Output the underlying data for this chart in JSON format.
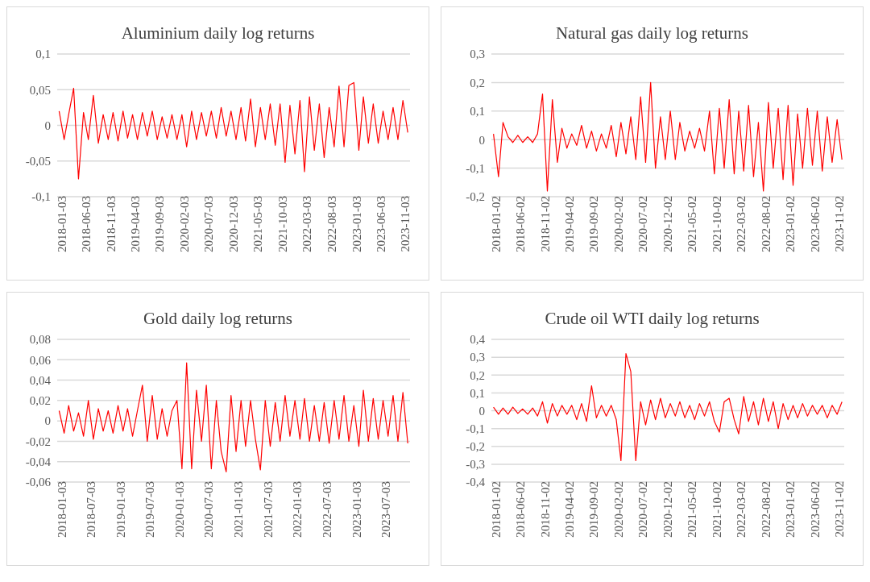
{
  "chart_data": [
    {
      "type": "line",
      "title": "Aluminium daily log returns",
      "grid": "y",
      "legend": false,
      "marker": "none",
      "line_style": "solid",
      "x": [
        "2018-01-15",
        "2018-02-15",
        "2018-03-15",
        "2018-04-15",
        "2018-05-15",
        "2018-06-15",
        "2018-07-15",
        "2018-08-15",
        "2018-09-15",
        "2018-10-15",
        "2018-11-15",
        "2018-12-15",
        "2019-01-15",
        "2019-02-15",
        "2019-03-15",
        "2019-04-15",
        "2019-05-15",
        "2019-06-15",
        "2019-07-15",
        "2019-08-15",
        "2019-09-15",
        "2019-10-15",
        "2019-11-15",
        "2019-12-15",
        "2020-01-15",
        "2020-02-15",
        "2020-03-15",
        "2020-04-15",
        "2020-05-15",
        "2020-06-15",
        "2020-07-15",
        "2020-08-15",
        "2020-09-15",
        "2020-10-15",
        "2020-11-15",
        "2020-12-15",
        "2021-01-15",
        "2021-02-15",
        "2021-03-15",
        "2021-04-15",
        "2021-05-15",
        "2021-06-15",
        "2021-07-15",
        "2021-08-15",
        "2021-09-15",
        "2021-10-15",
        "2021-11-15",
        "2021-12-15",
        "2022-01-15",
        "2022-02-15",
        "2022-03-15",
        "2022-04-15",
        "2022-05-15",
        "2022-06-15",
        "2022-07-15",
        "2022-08-15",
        "2022-09-15",
        "2022-10-15",
        "2022-11-15",
        "2022-12-15",
        "2023-01-15",
        "2023-02-15",
        "2023-03-15",
        "2023-04-15",
        "2023-05-15",
        "2023-06-15",
        "2023-07-15",
        "2023-08-15",
        "2023-09-15",
        "2023-10-15",
        "2023-11-15",
        "2023-12-15"
      ],
      "series": [
        {
          "color": "#ff0000",
          "values": [
            0.02,
            -0.02,
            0.015,
            0.052,
            -0.075,
            0.018,
            -0.02,
            0.042,
            -0.025,
            0.015,
            -0.02,
            0.018,
            -0.022,
            0.02,
            -0.018,
            0.015,
            -0.02,
            0.018,
            -0.015,
            0.02,
            -0.02,
            0.012,
            -0.018,
            0.015,
            -0.02,
            0.015,
            -0.03,
            0.02,
            -0.02,
            0.018,
            -0.015,
            0.02,
            -0.018,
            0.025,
            -0.015,
            0.02,
            -0.02,
            0.025,
            -0.022,
            0.037,
            -0.03,
            0.025,
            -0.02,
            0.03,
            -0.028,
            0.03,
            -0.052,
            0.028,
            -0.04,
            0.035,
            -0.065,
            0.04,
            -0.035,
            0.03,
            -0.045,
            0.025,
            -0.03,
            0.055,
            -0.03,
            0.056,
            0.06,
            -0.035,
            0.04,
            -0.025,
            0.03,
            -0.025,
            0.02,
            -0.02,
            0.025,
            -0.02,
            0.035,
            -0.01
          ]
        }
      ],
      "xlim": [
        "2018-01-03",
        "2023-12-29"
      ],
      "xticks": [
        "2018-01-03",
        "2018-06-03",
        "2018-11-03",
        "2019-04-03",
        "2019-09-03",
        "2020-02-03",
        "2020-07-03",
        "2020-12-03",
        "2021-05-03",
        "2021-10-03",
        "2022-03-03",
        "2022-08-03",
        "2023-01-03",
        "2023-06-03",
        "2023-11-03"
      ],
      "ylim": [
        -0.1,
        0.1
      ],
      "yticks": [
        {
          "value": -0.1,
          "label": "-0,1"
        },
        {
          "value": -0.05,
          "label": "-0,05"
        },
        {
          "value": 0,
          "label": "0"
        },
        {
          "value": 0.05,
          "label": "0,05"
        },
        {
          "value": 0.1,
          "label": "0,1"
        }
      ]
    },
    {
      "type": "line",
      "title": "Natural gas daily log returns",
      "grid": "y",
      "legend": false,
      "marker": "none",
      "line_style": "solid",
      "x": [
        "2018-01-15",
        "2018-02-15",
        "2018-03-15",
        "2018-04-15",
        "2018-05-15",
        "2018-06-15",
        "2018-07-15",
        "2018-08-15",
        "2018-09-15",
        "2018-10-15",
        "2018-11-15",
        "2018-12-15",
        "2019-01-15",
        "2019-02-15",
        "2019-03-15",
        "2019-04-15",
        "2019-05-15",
        "2019-06-15",
        "2019-07-15",
        "2019-08-15",
        "2019-09-15",
        "2019-10-15",
        "2019-11-15",
        "2019-12-15",
        "2020-01-15",
        "2020-02-15",
        "2020-03-15",
        "2020-04-15",
        "2020-05-15",
        "2020-06-15",
        "2020-07-15",
        "2020-08-15",
        "2020-09-15",
        "2020-10-15",
        "2020-11-15",
        "2020-12-15",
        "2021-01-15",
        "2021-02-15",
        "2021-03-15",
        "2021-04-15",
        "2021-05-15",
        "2021-06-15",
        "2021-07-15",
        "2021-08-15",
        "2021-09-15",
        "2021-10-15",
        "2021-11-15",
        "2021-12-15",
        "2022-01-15",
        "2022-02-15",
        "2022-03-15",
        "2022-04-15",
        "2022-05-15",
        "2022-06-15",
        "2022-07-15",
        "2022-08-15",
        "2022-09-15",
        "2022-10-15",
        "2022-11-15",
        "2022-12-15",
        "2023-01-15",
        "2023-02-15",
        "2023-03-15",
        "2023-04-15",
        "2023-05-15",
        "2023-06-15",
        "2023-07-15",
        "2023-08-15",
        "2023-09-15",
        "2023-10-15",
        "2023-11-15",
        "2023-12-15"
      ],
      "series": [
        {
          "color": "#ff0000",
          "values": [
            0.02,
            -0.13,
            0.06,
            0.01,
            -0.01,
            0.015,
            -0.01,
            0.01,
            -0.01,
            0.02,
            0.16,
            -0.18,
            0.14,
            -0.08,
            0.04,
            -0.03,
            0.02,
            -0.02,
            0.05,
            -0.03,
            0.03,
            -0.04,
            0.02,
            -0.03,
            0.05,
            -0.06,
            0.06,
            -0.05,
            0.08,
            -0.07,
            0.15,
            -0.08,
            0.2,
            -0.1,
            0.08,
            -0.07,
            0.1,
            -0.07,
            0.06,
            -0.04,
            0.03,
            -0.03,
            0.04,
            -0.04,
            0.1,
            -0.12,
            0.11,
            -0.1,
            0.14,
            -0.12,
            0.1,
            -0.11,
            0.12,
            -0.13,
            0.06,
            -0.18,
            0.13,
            -0.1,
            0.11,
            -0.14,
            0.12,
            -0.16,
            0.09,
            -0.1,
            0.11,
            -0.09,
            0.1,
            -0.11,
            0.08,
            -0.08,
            0.07,
            -0.07
          ]
        }
      ],
      "xlim": [
        "2018-01-02",
        "2023-12-29"
      ],
      "xticks": [
        "2018-01-02",
        "2018-06-02",
        "2018-11-02",
        "2019-04-02",
        "2019-09-02",
        "2020-02-02",
        "2020-07-02",
        "2020-12-02",
        "2021-05-02",
        "2021-10-02",
        "2022-03-02",
        "2022-08-02",
        "2023-01-02",
        "2023-06-02",
        "2023-11-02"
      ],
      "ylim": [
        -0.2,
        0.3
      ],
      "yticks": [
        {
          "value": -0.2,
          "label": "-0,2"
        },
        {
          "value": -0.1,
          "label": "-0,1"
        },
        {
          "value": 0,
          "label": "0"
        },
        {
          "value": 0.1,
          "label": "0,1"
        },
        {
          "value": 0.2,
          "label": "0,2"
        },
        {
          "value": 0.3,
          "label": "0,3"
        }
      ]
    },
    {
      "type": "line",
      "title": "Gold daily log returns",
      "grid": "y",
      "legend": false,
      "marker": "none",
      "line_style": "solid",
      "x": [
        "2018-01-15",
        "2018-02-15",
        "2018-03-15",
        "2018-04-15",
        "2018-05-15",
        "2018-06-15",
        "2018-07-15",
        "2018-08-15",
        "2018-09-15",
        "2018-10-15",
        "2018-11-15",
        "2018-12-15",
        "2019-01-15",
        "2019-02-15",
        "2019-03-15",
        "2019-04-15",
        "2019-05-15",
        "2019-06-15",
        "2019-07-15",
        "2019-08-15",
        "2019-09-15",
        "2019-10-15",
        "2019-11-15",
        "2019-12-15",
        "2020-01-15",
        "2020-02-15",
        "2020-03-15",
        "2020-04-15",
        "2020-05-15",
        "2020-06-15",
        "2020-07-15",
        "2020-08-15",
        "2020-09-15",
        "2020-10-15",
        "2020-11-15",
        "2020-12-15",
        "2021-01-15",
        "2021-02-15",
        "2021-03-15",
        "2021-04-15",
        "2021-05-15",
        "2021-06-15",
        "2021-07-15",
        "2021-08-15",
        "2021-09-15",
        "2021-10-15",
        "2021-11-15",
        "2021-12-15",
        "2022-01-15",
        "2022-02-15",
        "2022-03-15",
        "2022-04-15",
        "2022-05-15",
        "2022-06-15",
        "2022-07-15",
        "2022-08-15",
        "2022-09-15",
        "2022-10-15",
        "2022-11-15",
        "2022-12-15",
        "2023-01-15",
        "2023-02-15",
        "2023-03-15",
        "2023-04-15",
        "2023-05-15",
        "2023-06-15",
        "2023-07-15",
        "2023-08-15",
        "2023-09-15",
        "2023-10-15",
        "2023-11-15",
        "2023-12-15"
      ],
      "series": [
        {
          "color": "#ff0000",
          "values": [
            0.01,
            -0.012,
            0.015,
            -0.01,
            0.008,
            -0.015,
            0.02,
            -0.018,
            0.012,
            -0.01,
            0.01,
            -0.012,
            0.015,
            -0.01,
            0.012,
            -0.015,
            0.01,
            0.035,
            -0.02,
            0.025,
            -0.018,
            0.012,
            -0.015,
            0.01,
            0.02,
            -0.047,
            0.057,
            -0.047,
            0.03,
            -0.02,
            0.035,
            -0.047,
            0.02,
            -0.03,
            -0.05,
            0.025,
            -0.03,
            0.02,
            -0.025,
            0.02,
            -0.018,
            -0.048,
            0.02,
            -0.025,
            0.018,
            -0.02,
            0.025,
            -0.015,
            0.02,
            -0.018,
            0.022,
            -0.02,
            0.015,
            -0.02,
            0.018,
            -0.022,
            0.02,
            -0.018,
            0.025,
            -0.02,
            0.015,
            -0.025,
            0.03,
            -0.02,
            0.022,
            -0.018,
            0.02,
            -0.015,
            0.025,
            -0.02,
            0.028,
            -0.022
          ]
        }
      ],
      "xlim": [
        "2018-01-03",
        "2023-12-29"
      ],
      "xticks": [
        "2018-01-03",
        "2018-07-03",
        "2019-01-03",
        "2019-07-03",
        "2020-01-03",
        "2020-07-03",
        "2021-01-03",
        "2021-07-03",
        "2022-01-03",
        "2022-07-03",
        "2023-01-03",
        "2023-07-03"
      ],
      "ylim": [
        -0.06,
        0.08
      ],
      "yticks": [
        {
          "value": -0.06,
          "label": "-0,06"
        },
        {
          "value": -0.04,
          "label": "-0,04"
        },
        {
          "value": -0.02,
          "label": "-0,02"
        },
        {
          "value": 0,
          "label": "0"
        },
        {
          "value": 0.02,
          "label": "0,02"
        },
        {
          "value": 0.04,
          "label": "0,04"
        },
        {
          "value": 0.06,
          "label": "0,06"
        },
        {
          "value": 0.08,
          "label": "0,08"
        }
      ]
    },
    {
      "type": "line",
      "title": "Crude oil WTI daily log returns",
      "grid": "y",
      "legend": false,
      "marker": "none",
      "line_style": "solid",
      "x": [
        "2018-01-15",
        "2018-02-15",
        "2018-03-15",
        "2018-04-15",
        "2018-05-15",
        "2018-06-15",
        "2018-07-15",
        "2018-08-15",
        "2018-09-15",
        "2018-10-15",
        "2018-11-15",
        "2018-12-15",
        "2019-01-15",
        "2019-02-15",
        "2019-03-15",
        "2019-04-15",
        "2019-05-15",
        "2019-06-15",
        "2019-07-15",
        "2019-08-15",
        "2019-09-15",
        "2019-10-15",
        "2019-11-15",
        "2019-12-15",
        "2020-01-15",
        "2020-02-15",
        "2020-03-15",
        "2020-04-15",
        "2020-05-15",
        "2020-06-15",
        "2020-07-15",
        "2020-08-15",
        "2020-09-15",
        "2020-10-15",
        "2020-11-15",
        "2020-12-15",
        "2021-01-15",
        "2021-02-15",
        "2021-03-15",
        "2021-04-15",
        "2021-05-15",
        "2021-06-15",
        "2021-07-15",
        "2021-08-15",
        "2021-09-15",
        "2021-10-15",
        "2021-11-15",
        "2021-12-15",
        "2022-01-15",
        "2022-02-15",
        "2022-03-15",
        "2022-04-15",
        "2022-05-15",
        "2022-06-15",
        "2022-07-15",
        "2022-08-15",
        "2022-09-15",
        "2022-10-15",
        "2022-11-15",
        "2022-12-15",
        "2023-01-15",
        "2023-02-15",
        "2023-03-15",
        "2023-04-15",
        "2023-05-15",
        "2023-06-15",
        "2023-07-15",
        "2023-08-15",
        "2023-09-15",
        "2023-10-15",
        "2023-11-15",
        "2023-12-15"
      ],
      "series": [
        {
          "color": "#ff0000",
          "values": [
            0.02,
            -0.02,
            0.015,
            -0.02,
            0.02,
            -0.015,
            0.01,
            -0.02,
            0.015,
            -0.03,
            0.05,
            -0.07,
            0.04,
            -0.03,
            0.03,
            -0.02,
            0.03,
            -0.05,
            0.04,
            -0.06,
            0.14,
            -0.04,
            0.03,
            -0.03,
            0.03,
            -0.05,
            -0.28,
            0.32,
            0.22,
            -0.28,
            0.05,
            -0.08,
            0.06,
            -0.05,
            0.07,
            -0.04,
            0.04,
            -0.03,
            0.05,
            -0.04,
            0.03,
            -0.05,
            0.04,
            -0.03,
            0.05,
            -0.06,
            -0.12,
            0.05,
            0.07,
            -0.05,
            -0.13,
            0.08,
            -0.06,
            0.05,
            -0.08,
            0.07,
            -0.06,
            0.05,
            -0.1,
            0.04,
            -0.05,
            0.03,
            -0.04,
            0.04,
            -0.03,
            0.03,
            -0.02,
            0.03,
            -0.04,
            0.03,
            -0.02,
            0.05
          ]
        }
      ],
      "xlim": [
        "2018-01-02",
        "2023-12-29"
      ],
      "xticks": [
        "2018-01-02",
        "2018-06-02",
        "2018-11-02",
        "2019-04-02",
        "2019-09-02",
        "2020-02-02",
        "2020-07-02",
        "2020-12-02",
        "2021-05-02",
        "2021-10-02",
        "2022-03-02",
        "2022-08-02",
        "2023-01-02",
        "2023-06-02",
        "2023-11-02"
      ],
      "ylim": [
        -0.4,
        0.4
      ],
      "yticks": [
        {
          "value": -0.4,
          "label": "-0,4"
        },
        {
          "value": -0.3,
          "label": "-0,3"
        },
        {
          "value": -0.2,
          "label": "-0,2"
        },
        {
          "value": -0.1,
          "label": "-0,1"
        },
        {
          "value": 0,
          "label": "0"
        },
        {
          "value": 0.1,
          "label": "0,1"
        },
        {
          "value": 0.2,
          "label": "0,2"
        },
        {
          "value": 0.3,
          "label": "0,3"
        },
        {
          "value": 0.4,
          "label": "0,4"
        }
      ]
    }
  ]
}
